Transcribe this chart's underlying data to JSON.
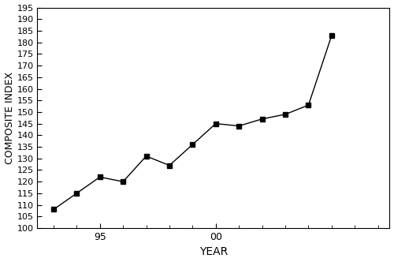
{
  "years": [
    1993,
    1994,
    1995,
    1996,
    1997,
    1998,
    1999,
    2000,
    2001,
    2002,
    2003,
    2004,
    2005
  ],
  "values": [
    108,
    115,
    122,
    120,
    131,
    127,
    136,
    145,
    144,
    147,
    149,
    153,
    183
  ],
  "xlabel": "YEAR",
  "ylabel": "COMPOSITE INDEX",
  "xlim": [
    1992.3,
    2007.5
  ],
  "ylim": [
    100,
    195
  ],
  "yticks": [
    100,
    105,
    110,
    115,
    120,
    125,
    130,
    135,
    140,
    145,
    150,
    155,
    160,
    165,
    170,
    175,
    180,
    185,
    190,
    195
  ],
  "xtick_major_positions": [
    1995,
    2000
  ],
  "xtick_major_labels": [
    "95",
    "00"
  ],
  "xtick_minor_positions": [
    1993,
    1994,
    1995,
    1996,
    1997,
    1998,
    1999,
    2000,
    2001,
    2002,
    2003,
    2004,
    2005,
    2006,
    2007
  ],
  "line_color": "#000000",
  "marker": "s",
  "marker_size": 4,
  "marker_color": "#000000",
  "background_color": "#ffffff"
}
